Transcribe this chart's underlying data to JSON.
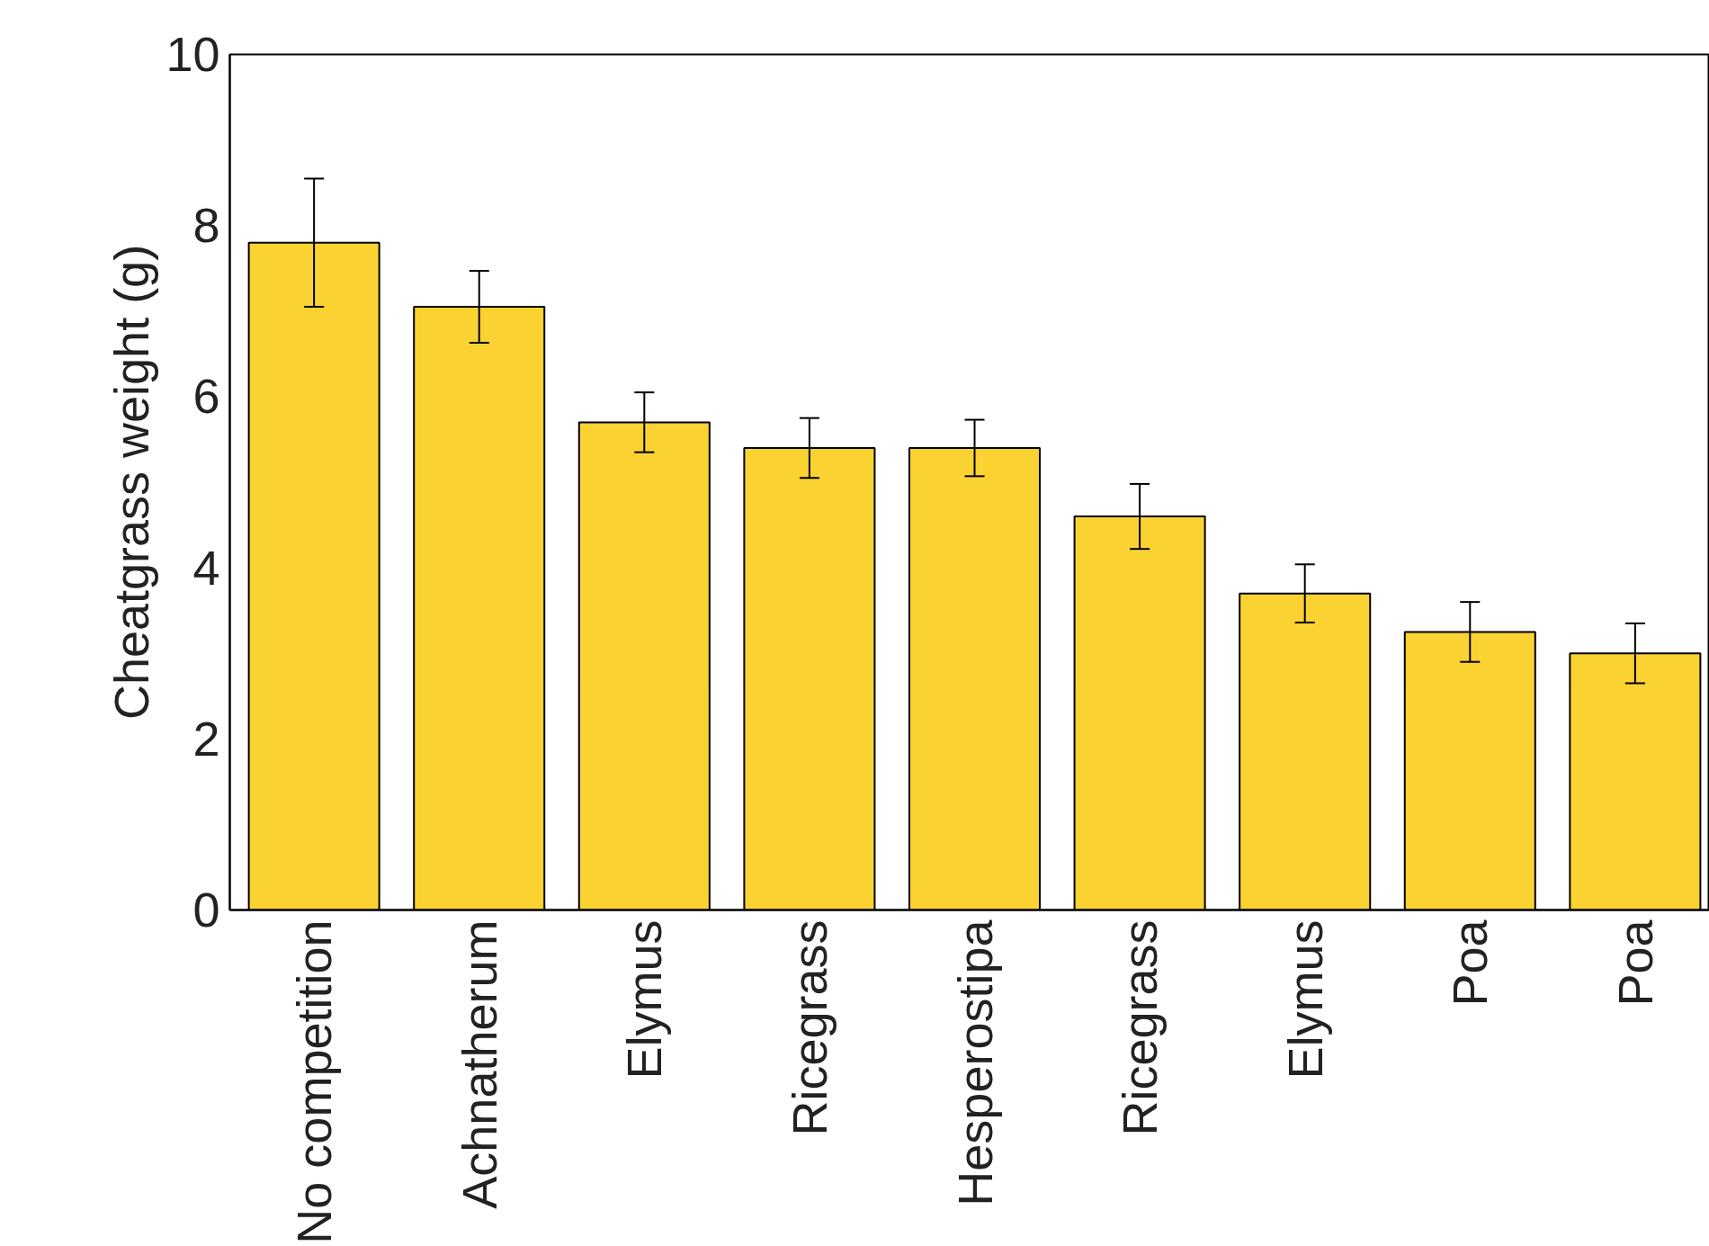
{
  "chart_data": {
    "type": "bar",
    "ylabel": "Cheatgrass weight (g)",
    "categories": [
      "No competition",
      "Achnatherum",
      "Elymus",
      "Ricegrass",
      "Hesperostipa",
      "Ricegrass",
      "Elymus",
      "Poa",
      "Poa"
    ],
    "values": [
      7.8,
      7.05,
      5.7,
      5.4,
      5.4,
      4.6,
      3.7,
      3.25,
      3.0
    ],
    "errors": [
      0.75,
      0.42,
      0.35,
      0.35,
      0.33,
      0.38,
      0.34,
      0.35,
      0.35
    ],
    "color": "#fad232",
    "ylim": [
      0,
      10
    ],
    "yticks": [
      0,
      2,
      4,
      6,
      8,
      10
    ],
    "grid": false
  }
}
